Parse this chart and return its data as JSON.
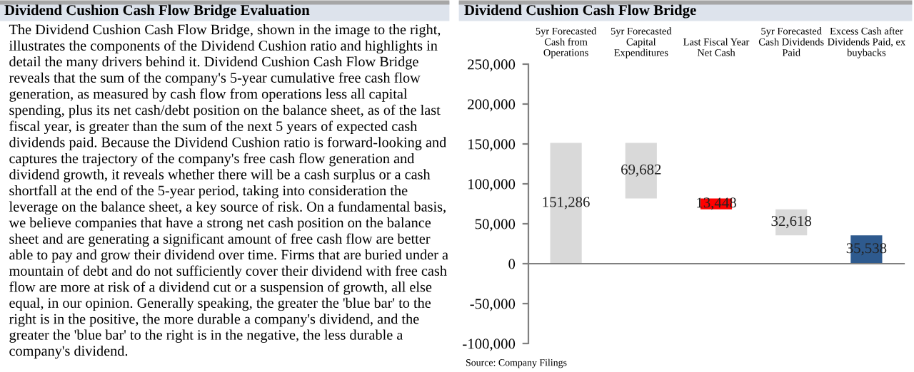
{
  "chart_data": [
    {
      "type": "other",
      "title": "Dividend Cushion Cash Flow Bridge Evaluation",
      "annotations": [
        "The Dividend Cushion Cash Flow Bridge, shown in the image to the right, illustrates the components of the Dividend Cushion ratio and highlights in detail the many drivers behind it. Dividend Cushion Cash Flow Bridge reveals that the sum of the company's 5-year cumulative free cash flow generation, as measured by cash flow from operations less all capital spending, plus its net cash/debt position on the balance sheet, as of the last fiscal year, is greater than the sum of the next 5 years of expected cash dividends paid. Because the Dividend Cushion ratio is forward-looking and captures the trajectory of the company's free cash flow generation and dividend growth, it reveals whether there will be a cash surplus or a cash shortfall at the end of the 5-year period, taking into consideration the leverage on the balance sheet, a key source of risk. On a fundamental basis, we believe companies that have a strong net cash position on the balance sheet and are generating a significant amount of free cash flow are better able to pay and grow their dividend over time. Firms that are buried under a mountain of debt and do not sufficiently cover their dividend with free cash flow are more at risk of a dividend cut or a suspension of growth, all else equal, in our opinion. Generally speaking, the greater the 'blue bar' to the right is in the positive, the more durable a company's dividend, and the greater the 'blue bar' to the right is in the negative, the less durable a company's dividend."
      ]
    },
    {
      "type": "bar",
      "title": "Dividend Cushion Cash Flow Bridge",
      "categories": [
        "5yr Forecasted\nCash from\nOperations",
        "5yr Forecasted\nCapital\nExpenditures",
        "Last Fiscal Year\nNet Cash",
        "5yr Forecasted\nCash Dividends\nPaid",
        "Excess Cash after\nDividends Paid, ex\nbuybacks"
      ],
      "values": [
        151286,
        69682,
        13448,
        32618,
        35538
      ],
      "base": [
        0,
        81604,
        68156,
        35538,
        0
      ],
      "colors": [
        "#d9d9d9",
        "#d9d9d9",
        "#ff0000",
        "#d9d9d9",
        "#2e5a8e"
      ],
      "value_labels": [
        "151,286",
        "69,682",
        "13,448",
        "32,618",
        "35,538"
      ],
      "ylim": [
        -100000,
        250000
      ],
      "yticks": [
        {
          "value": -100000,
          "label": "-100,000"
        },
        {
          "value": -50000,
          "label": "-50,000"
        },
        0,
        {
          "value": 50000,
          "label": "50,000"
        },
        {
          "value": 100000,
          "label": "100,000"
        },
        {
          "value": 150000,
          "label": "150,000"
        },
        {
          "value": 200000,
          "label": "200,000"
        },
        {
          "value": 250000,
          "label": "250,000"
        }
      ],
      "legend": false,
      "annotations": [
        "Source: Company Filings"
      ]
    }
  ]
}
